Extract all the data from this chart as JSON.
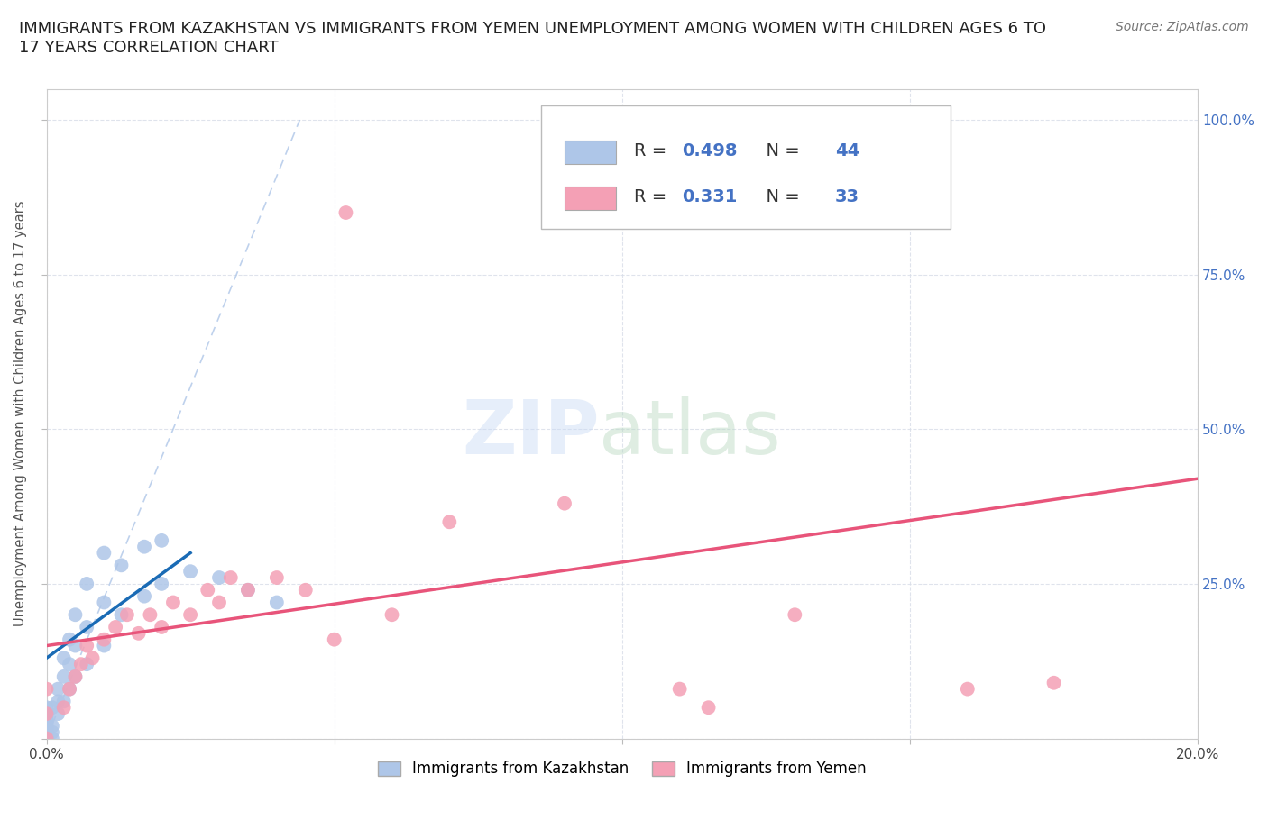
{
  "title": "IMMIGRANTS FROM KAZAKHSTAN VS IMMIGRANTS FROM YEMEN UNEMPLOYMENT AMONG WOMEN WITH CHILDREN AGES 6 TO\n17 YEARS CORRELATION CHART",
  "source_text": "Source: ZipAtlas.com",
  "ylabel": "Unemployment Among Women with Children Ages 6 to 17 years",
  "xlim": [
    0.0,
    0.2
  ],
  "ylim": [
    0.0,
    1.05
  ],
  "kaz_line_color": "#1a6bb5",
  "yem_line_color": "#e8547a",
  "kaz_scatter_color": "#aec6e8",
  "yem_scatter_color": "#f4a0b5",
  "diagonal_color": "#aec6e8",
  "background_color": "#ffffff",
  "grid_color": "#d8dde8",
  "title_fontsize": 13,
  "axis_label_fontsize": 10.5,
  "tick_fontsize": 11,
  "legend_fontsize": 14,
  "source_fontsize": 10,
  "kaz_R": 0.498,
  "kaz_N": 44,
  "yem_R": 0.331,
  "yem_N": 33,
  "kaz_points": [
    [
      0.0,
      0.0
    ],
    [
      0.0,
      0.0
    ],
    [
      0.0,
      0.0
    ],
    [
      0.0,
      0.005
    ],
    [
      0.0,
      0.01
    ],
    [
      0.0,
      0.015
    ],
    [
      0.0,
      0.02
    ],
    [
      0.0,
      0.025
    ],
    [
      0.0,
      0.03
    ],
    [
      0.0,
      0.035
    ],
    [
      0.0,
      0.04
    ],
    [
      0.0,
      0.05
    ],
    [
      0.001,
      0.0
    ],
    [
      0.001,
      0.01
    ],
    [
      0.001,
      0.02
    ],
    [
      0.001,
      0.05
    ],
    [
      0.002,
      0.04
    ],
    [
      0.002,
      0.06
    ],
    [
      0.002,
      0.08
    ],
    [
      0.003,
      0.06
    ],
    [
      0.003,
      0.1
    ],
    [
      0.003,
      0.13
    ],
    [
      0.004,
      0.08
    ],
    [
      0.004,
      0.12
    ],
    [
      0.004,
      0.16
    ],
    [
      0.005,
      0.1
    ],
    [
      0.005,
      0.15
    ],
    [
      0.005,
      0.2
    ],
    [
      0.007,
      0.12
    ],
    [
      0.007,
      0.18
    ],
    [
      0.007,
      0.25
    ],
    [
      0.01,
      0.15
    ],
    [
      0.01,
      0.22
    ],
    [
      0.01,
      0.3
    ],
    [
      0.013,
      0.2
    ],
    [
      0.013,
      0.28
    ],
    [
      0.017,
      0.23
    ],
    [
      0.017,
      0.31
    ],
    [
      0.02,
      0.25
    ],
    [
      0.02,
      0.32
    ],
    [
      0.025,
      0.27
    ],
    [
      0.03,
      0.26
    ],
    [
      0.035,
      0.24
    ],
    [
      0.04,
      0.22
    ]
  ],
  "yem_points": [
    [
      0.0,
      0.0
    ],
    [
      0.0,
      0.04
    ],
    [
      0.0,
      0.08
    ],
    [
      0.003,
      0.05
    ],
    [
      0.004,
      0.08
    ],
    [
      0.005,
      0.1
    ],
    [
      0.006,
      0.12
    ],
    [
      0.007,
      0.15
    ],
    [
      0.008,
      0.13
    ],
    [
      0.01,
      0.16
    ],
    [
      0.012,
      0.18
    ],
    [
      0.014,
      0.2
    ],
    [
      0.016,
      0.17
    ],
    [
      0.018,
      0.2
    ],
    [
      0.02,
      0.18
    ],
    [
      0.022,
      0.22
    ],
    [
      0.025,
      0.2
    ],
    [
      0.028,
      0.24
    ],
    [
      0.03,
      0.22
    ],
    [
      0.032,
      0.26
    ],
    [
      0.035,
      0.24
    ],
    [
      0.04,
      0.26
    ],
    [
      0.045,
      0.24
    ],
    [
      0.05,
      0.16
    ],
    [
      0.052,
      0.85
    ],
    [
      0.06,
      0.2
    ],
    [
      0.07,
      0.35
    ],
    [
      0.09,
      0.38
    ],
    [
      0.11,
      0.08
    ],
    [
      0.115,
      0.05
    ],
    [
      0.13,
      0.2
    ],
    [
      0.16,
      0.08
    ],
    [
      0.175,
      0.09
    ]
  ]
}
